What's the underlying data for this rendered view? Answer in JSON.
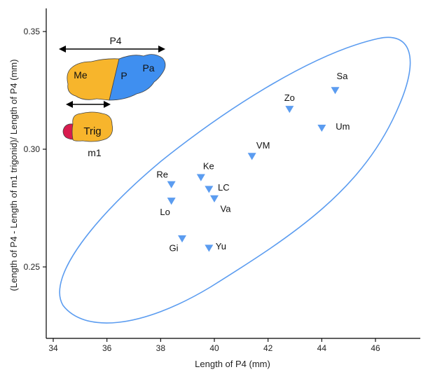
{
  "chart_data": {
    "type": "scatter",
    "title": "",
    "xlabel": "Length of P4 (mm)",
    "ylabel": "(Length of P4 - Length of m1 trigonid)/ Length of P4 (mm)",
    "xlim": [
      33.5,
      47.5
    ],
    "ylim": [
      0.22,
      0.36
    ],
    "x_ticks": [
      34,
      36,
      38,
      40,
      42,
      44,
      46
    ],
    "x_tick_labels": [
      "34",
      "36",
      "38",
      "40",
      "42",
      "44",
      "46"
    ],
    "y_ticks": [
      0.25,
      0.3,
      0.35
    ],
    "y_tick_labels": [
      "0.25",
      "0.30",
      "0.35"
    ],
    "grid": false,
    "series": [
      {
        "marker": "triangle-down",
        "color": "#5b9cf0",
        "points": [
          {
            "label": "Sa",
            "x": 44.5,
            "y": 0.325
          },
          {
            "label": "Zo",
            "x": 42.8,
            "y": 0.317
          },
          {
            "label": "Um",
            "x": 44.0,
            "y": 0.309
          },
          {
            "label": "VM",
            "x": 41.4,
            "y": 0.297
          },
          {
            "label": "Ke",
            "x": 39.5,
            "y": 0.288
          },
          {
            "label": "Re",
            "x": 38.4,
            "y": 0.285
          },
          {
            "label": "LC",
            "x": 39.8,
            "y": 0.283
          },
          {
            "label": "Va",
            "x": 40.0,
            "y": 0.279
          },
          {
            "label": "Lo",
            "x": 38.4,
            "y": 0.278
          },
          {
            "label": "Gi",
            "x": 38.8,
            "y": 0.262
          },
          {
            "label": "Yu",
            "x": 39.8,
            "y": 0.258
          }
        ]
      }
    ],
    "ellipse": {
      "color": "#5b9cf0"
    },
    "inset": {
      "p4_label": "P4",
      "me_label": "Me",
      "p_label": "P",
      "pa_label": "Pa",
      "trig_label": "Trig",
      "m1_label": "m1",
      "colors": {
        "orange": "#f7b52c",
        "blue": "#3f8ff0",
        "magenta": "#d81b4e"
      }
    }
  }
}
